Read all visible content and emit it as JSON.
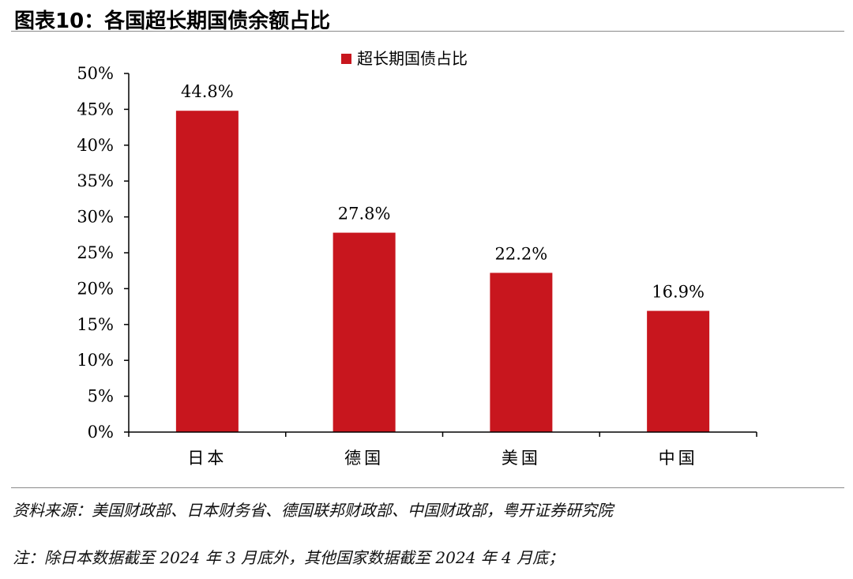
{
  "figure_title": "图表10：各国超长期国债余额占比",
  "chart_data": {
    "type": "bar",
    "categories": [
      "日本",
      "德国",
      "美国",
      "中国"
    ],
    "series": [
      {
        "name": "超长期国债占比",
        "values": [
          44.8,
          27.8,
          22.2,
          16.9
        ],
        "color": "#c8161e"
      }
    ],
    "data_labels": [
      "44.8%",
      "27.8%",
      "22.2%",
      "16.9%"
    ],
    "y_ticks": [
      "0%",
      "5%",
      "10%",
      "15%",
      "20%",
      "25%",
      "30%",
      "35%",
      "40%",
      "45%",
      "50%"
    ],
    "ylim": [
      0,
      50
    ],
    "grid": false,
    "legend_position": "top-center"
  },
  "source_note": "资料来源：美国财政部、日本财务省、德国联邦财政部、中国财政部，粤开证券研究院",
  "footnote": "注：除日本数据截至 2024 年 3 月底外，其他国家数据截至 2024 年 4 月底；"
}
